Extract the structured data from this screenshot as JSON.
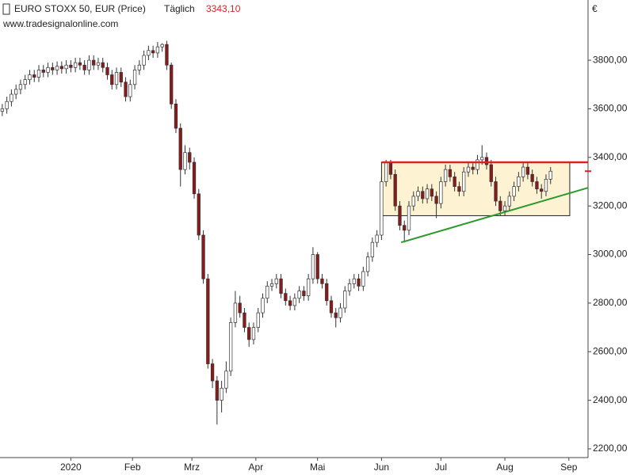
{
  "chart_data": {
    "type": "candlestick",
    "title": "EURO STOXX 50, EUR (Price)",
    "interval": "Täglich",
    "last_price": {
      "value": 3343.1,
      "label": "3343,10"
    },
    "source": "www.tradesignalonline.com",
    "currency_label": "€",
    "up_color": "#ffffff",
    "down_color": "#8b1a1a",
    "outline_color": "#333333",
    "last_price_color": "#e02020",
    "series": [
      {
        "open": [
          3590,
          3600,
          3630,
          3660,
          3680,
          3700,
          3720,
          3740,
          3730,
          3760,
          3750,
          3770,
          3760,
          3775,
          3765,
          3780,
          3770,
          3790,
          3780,
          3760,
          3800,
          3780,
          3790,
          3770,
          3740,
          3700,
          3750,
          3710,
          3650,
          3700,
          3760,
          3780,
          3820,
          3840,
          3830,
          3855,
          3865,
          3780,
          3620,
          3520,
          3350,
          3420,
          3380,
          3250,
          3080,
          2900,
          2550,
          2480,
          2400,
          2450,
          2520,
          2720,
          2800,
          2760,
          2700,
          2650,
          2700,
          2760,
          2820,
          2870,
          2880,
          2900,
          2840,
          2810,
          2790,
          2820,
          2850,
          2830,
          2900,
          3000,
          2900,
          2880,
          2810,
          2760,
          2740,
          2780,
          2850,
          2880,
          2900,
          2870,
          2930,
          2990,
          3050,
          3080,
          3300,
          3380,
          3330,
          3200,
          3120,
          3100,
          3200,
          3240,
          3260,
          3230,
          3270,
          3240,
          3210,
          3300,
          3350,
          3320,
          3280,
          3260,
          3340,
          3360,
          3350,
          3390,
          3400,
          3370,
          3300,
          3220,
          3180,
          3200,
          3240,
          3280,
          3320,
          3360,
          3330,
          3300,
          3270,
          3260,
          3310
        ],
        "high": [
          3620,
          3650,
          3680,
          3700,
          3720,
          3740,
          3760,
          3760,
          3780,
          3780,
          3790,
          3790,
          3795,
          3795,
          3800,
          3800,
          3810,
          3810,
          3800,
          3820,
          3820,
          3810,
          3810,
          3790,
          3760,
          3770,
          3770,
          3730,
          3720,
          3780,
          3800,
          3840,
          3860,
          3860,
          3875,
          3870,
          3880,
          3790,
          3640,
          3540,
          3450,
          3440,
          3400,
          3270,
          3100,
          2920,
          2570,
          2500,
          2480,
          2560,
          2740,
          2850,
          2830,
          2780,
          2720,
          2720,
          2780,
          2840,
          2890,
          2900,
          2920,
          2920,
          2860,
          2830,
          2840,
          2870,
          2870,
          2920,
          3030,
          3010,
          2920,
          2900,
          2830,
          2780,
          2800,
          2870,
          2900,
          2920,
          2920,
          2950,
          3010,
          3070,
          3100,
          3320,
          3390,
          3390,
          3350,
          3220,
          3140,
          3220,
          3260,
          3280,
          3280,
          3290,
          3290,
          3260,
          3320,
          3370,
          3370,
          3340,
          3300,
          3360,
          3380,
          3380,
          3410,
          3450,
          3420,
          3390,
          3320,
          3240,
          3220,
          3260,
          3300,
          3340,
          3380,
          3380,
          3350,
          3320,
          3290,
          3330,
          3360
        ],
        "low": [
          3570,
          3580,
          3610,
          3640,
          3660,
          3680,
          3700,
          3710,
          3710,
          3730,
          3730,
          3740,
          3740,
          3745,
          3745,
          3750,
          3750,
          3760,
          3740,
          3740,
          3760,
          3760,
          3750,
          3720,
          3680,
          3680,
          3690,
          3630,
          3630,
          3680,
          3740,
          3760,
          3800,
          3810,
          3810,
          3835,
          3760,
          3600,
          3500,
          3280,
          3330,
          3350,
          3230,
          3060,
          2880,
          2530,
          2450,
          2300,
          2350,
          2430,
          2500,
          2700,
          2740,
          2680,
          2620,
          2630,
          2680,
          2740,
          2800,
          2850,
          2860,
          2820,
          2790,
          2770,
          2770,
          2800,
          2810,
          2810,
          2880,
          2880,
          2860,
          2790,
          2740,
          2700,
          2720,
          2760,
          2830,
          2860,
          2850,
          2850,
          2910,
          2970,
          3030,
          3060,
          3280,
          3310,
          3180,
          3100,
          3050,
          3080,
          3180,
          3220,
          3210,
          3210,
          3220,
          3150,
          3190,
          3280,
          3300,
          3260,
          3240,
          3240,
          3320,
          3330,
          3330,
          3370,
          3350,
          3280,
          3200,
          3160,
          3160,
          3180,
          3220,
          3260,
          3300,
          3310,
          3280,
          3250,
          3230,
          3240,
          3290
        ],
        "close": [
          3600,
          3630,
          3660,
          3680,
          3700,
          3720,
          3740,
          3730,
          3760,
          3750,
          3770,
          3760,
          3775,
          3765,
          3780,
          3770,
          3790,
          3780,
          3760,
          3800,
          3780,
          3790,
          3770,
          3740,
          3700,
          3750,
          3710,
          3650,
          3700,
          3760,
          3780,
          3820,
          3840,
          3830,
          3855,
          3865,
          3780,
          3620,
          3520,
          3350,
          3420,
          3380,
          3250,
          3080,
          2900,
          2550,
          2480,
          2400,
          2450,
          2520,
          2720,
          2800,
          2760,
          2700,
          2650,
          2700,
          2760,
          2820,
          2870,
          2880,
          2900,
          2840,
          2810,
          2790,
          2820,
          2850,
          2830,
          2900,
          3000,
          2900,
          2880,
          2810,
          2760,
          2740,
          2780,
          2850,
          2880,
          2900,
          2870,
          2930,
          2990,
          3050,
          3080,
          3300,
          3380,
          3330,
          3200,
          3120,
          3100,
          3200,
          3240,
          3260,
          3230,
          3270,
          3240,
          3210,
          3300,
          3350,
          3320,
          3280,
          3260,
          3340,
          3360,
          3350,
          3390,
          3400,
          3370,
          3300,
          3220,
          3180,
          3200,
          3240,
          3280,
          3320,
          3360,
          3330,
          3300,
          3270,
          3260,
          3310,
          3343.1
        ]
      }
    ],
    "xlim": [
      -0.5,
      128.2
    ],
    "ylim": [
      2164,
      4048
    ],
    "xticks": [
      {
        "value": 15,
        "label": "2020"
      },
      {
        "value": 28.5,
        "label": "Feb"
      },
      {
        "value": 41.5,
        "label": "Mrz"
      },
      {
        "value": 55.5,
        "label": "Apr"
      },
      {
        "value": 69,
        "label": "Mai"
      },
      {
        "value": 83,
        "label": "Jun"
      },
      {
        "value": 96,
        "label": "Jul"
      },
      {
        "value": 110,
        "label": "Aug"
      },
      {
        "value": 124,
        "label": "Sep"
      }
    ],
    "yticks": [
      {
        "value": 2200,
        "label": "2200,00"
      },
      {
        "value": 2400,
        "label": "2400,00"
      },
      {
        "value": 2600,
        "label": "2600,00"
      },
      {
        "value": 2800,
        "label": "2800,00"
      },
      {
        "value": 3000,
        "label": "3000,00"
      },
      {
        "value": 3200,
        "label": "3200,00"
      },
      {
        "value": 3400,
        "label": "3400,00"
      },
      {
        "value": 3600,
        "label": "3600,00"
      },
      {
        "value": 3800,
        "label": "3800,00"
      }
    ],
    "annotations": {
      "range_box": {
        "x": [
          83,
          124.2
        ],
        "y": [
          3160,
          3380
        ],
        "fill": "#fdf3d2"
      },
      "resistance": {
        "x": [
          83,
          128.2
        ],
        "y": [
          3380,
          3380
        ],
        "color": "#e02020"
      },
      "trendline": {
        "x": [
          87.3,
          128.2
        ],
        "y": [
          3050,
          3275
        ],
        "color": "#2c9a2c"
      }
    }
  }
}
